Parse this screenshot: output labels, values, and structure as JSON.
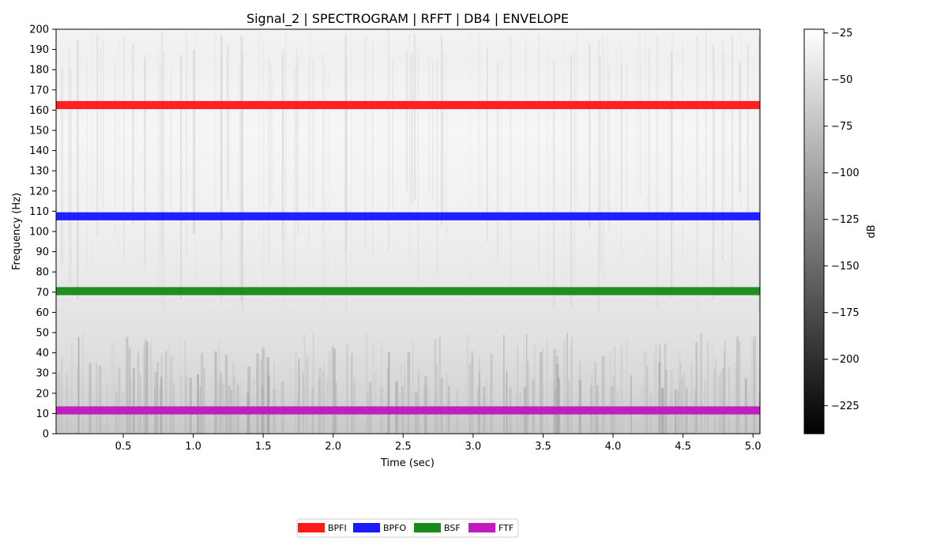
{
  "chart_data": {
    "type": "heatmap",
    "title": "Signal_2 | SPECTROGRAM  | RFFT | DB4 | ENVELOPE",
    "xlabel": "Time (sec)",
    "ylabel": "Frequency (Hz)",
    "xlim": [
      0.02,
      5.05
    ],
    "ylim": [
      0,
      200
    ],
    "x_ticks": [
      "0.5",
      "1.0",
      "1.5",
      "2.0",
      "2.5",
      "3.0",
      "3.5",
      "4.0",
      "4.5",
      "5.0"
    ],
    "x_tick_values": [
      0.5,
      1.0,
      1.5,
      2.0,
      2.5,
      3.0,
      3.5,
      4.0,
      4.5,
      5.0
    ],
    "y_ticks": [
      "0",
      "10",
      "20",
      "30",
      "40",
      "50",
      "60",
      "70",
      "80",
      "90",
      "100",
      "110",
      "120",
      "130",
      "140",
      "150",
      "160",
      "170",
      "180",
      "190",
      "200"
    ],
    "y_tick_values": [
      0,
      10,
      20,
      30,
      40,
      50,
      60,
      70,
      80,
      90,
      100,
      110,
      120,
      130,
      140,
      150,
      160,
      170,
      180,
      190,
      200
    ],
    "colormap": "gray",
    "colorbar": {
      "label": "dB",
      "range": [
        -240,
        -23
      ],
      "ticks": [
        "−25",
        "−50",
        "−75",
        "−100",
        "−125",
        "−150",
        "−175",
        "−200",
        "−225"
      ],
      "tick_values": [
        -25,
        -50,
        -75,
        -100,
        -125,
        -150,
        -175,
        -200,
        -225
      ]
    },
    "series": [
      {
        "name": "BPFI",
        "frequency": 162.5,
        "color": "#ff1a1a"
      },
      {
        "name": "BPFO",
        "frequency": 107.5,
        "color": "#1a1aff"
      },
      {
        "name": "BSF",
        "frequency": 70.5,
        "color": "#1a8a1a"
      },
      {
        "name": "FTF",
        "frequency": 11.5,
        "color": "#c01ac0"
      }
    ],
    "band_width_hz": 4,
    "legend_placement": "bottom-center",
    "grid": false
  }
}
